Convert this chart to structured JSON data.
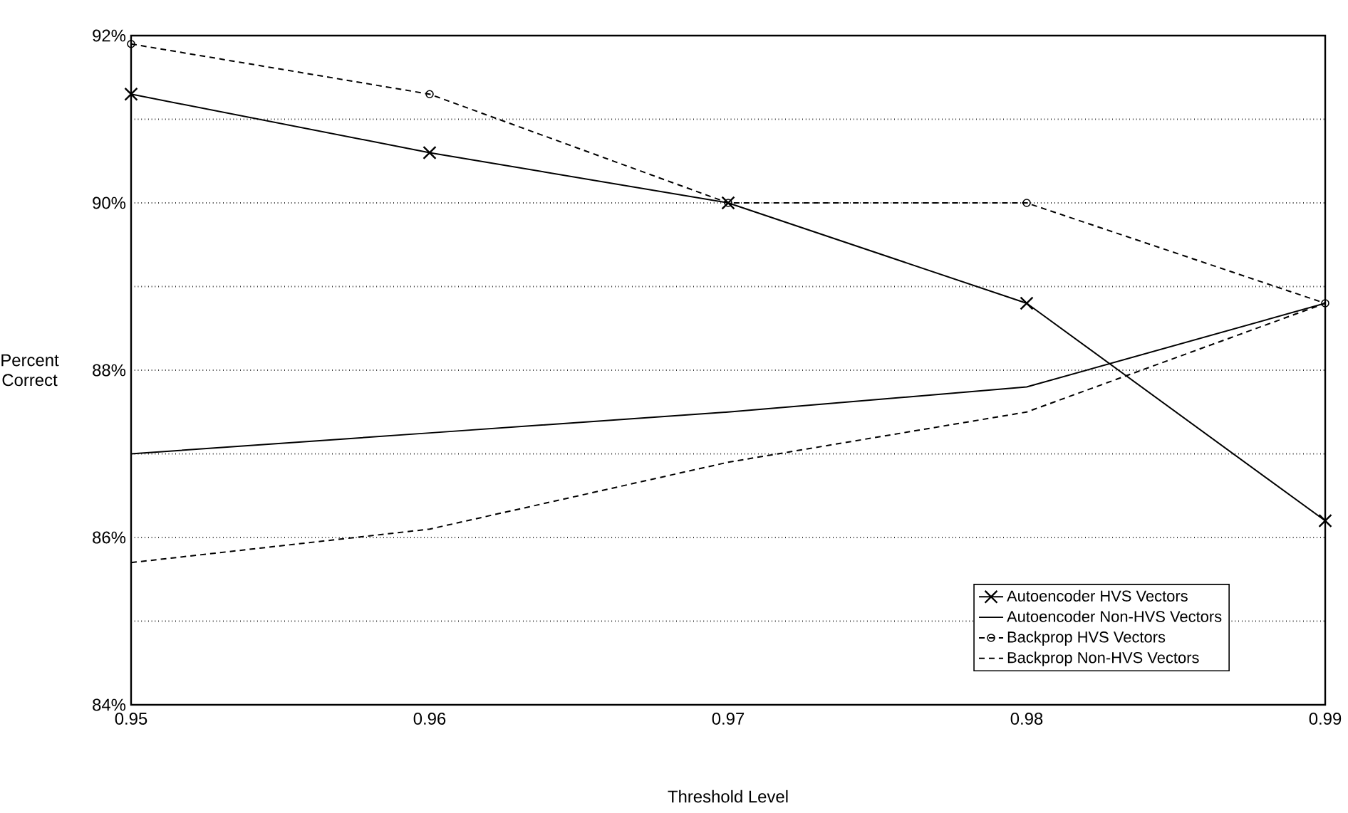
{
  "chart_data": {
    "type": "line",
    "xlabel": "Threshold Level",
    "ylabel": "Percent Correct",
    "x": [
      0.95,
      0.96,
      0.97,
      0.98,
      0.99
    ],
    "series": [
      {
        "name": "Autoencoder HVS Vectors",
        "color": "#000000",
        "marker": "cross",
        "line_style": "solid",
        "values": [
          91.3,
          90.6,
          90.0,
          88.8,
          86.2
        ]
      },
      {
        "name": "Autoencoder Non-HVS Vectors",
        "color": "#000000",
        "marker": "none",
        "line_style": "solid",
        "values": [
          87.0,
          87.25,
          87.5,
          87.8,
          88.8
        ]
      },
      {
        "name": "Backprop HVS Vectors",
        "color": "#000000",
        "marker": "circle",
        "line_style": "dashed",
        "values": [
          91.9,
          91.3,
          90.0,
          90.0,
          88.8
        ]
      },
      {
        "name": "Backprop Non-HVS Vectors",
        "color": "#000000",
        "marker": "none",
        "line_style": "dashed",
        "values": [
          85.7,
          86.1,
          86.9,
          87.5,
          88.8
        ]
      }
    ],
    "xlim": [
      0.95,
      0.99
    ],
    "ylim": [
      84,
      92
    ],
    "xticks": [
      0.95,
      0.96,
      0.97,
      0.98,
      0.99
    ],
    "yticks": [
      {
        "value": 84,
        "label": "84%"
      },
      {
        "value": 85,
        "label": null
      },
      {
        "value": 86,
        "label": "86%"
      },
      {
        "value": 87,
        "label": null
      },
      {
        "value": 88,
        "label": "88%"
      },
      {
        "value": 89,
        "label": null
      },
      {
        "value": 90,
        "label": "90%"
      },
      {
        "value": 91,
        "label": null
      },
      {
        "value": 92,
        "label": "92%"
      }
    ],
    "grid": "y",
    "legend": "bottom right"
  }
}
